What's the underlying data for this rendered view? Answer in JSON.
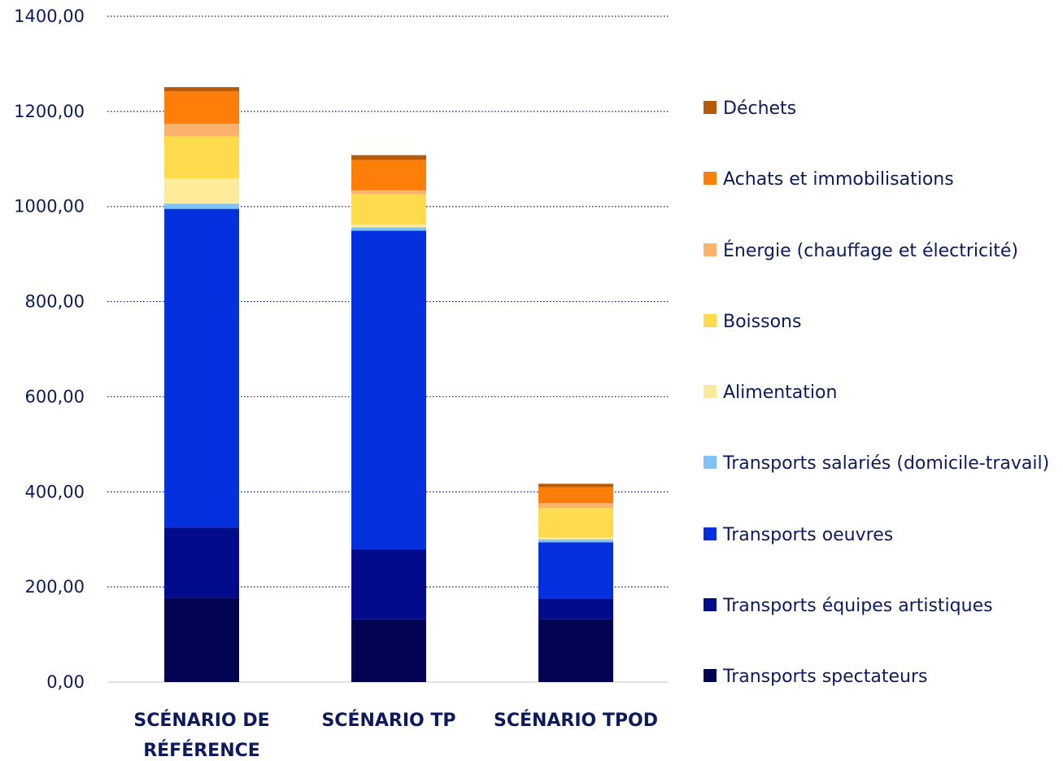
{
  "chart_data": {
    "type": "bar",
    "stacked": true,
    "categories": [
      [
        "SCÉNARIO DE",
        "RÉFÉRENCE"
      ],
      [
        "SCÉNARIO TP"
      ],
      [
        "SCÉNARIO TPOD"
      ]
    ],
    "ylim": [
      0,
      1400
    ],
    "yticks": [
      "0,00",
      "200,00",
      "400,00",
      "600,00",
      "800,00",
      "1000,00",
      "1200,00",
      "1400,00"
    ],
    "ytick_values": [
      0,
      200,
      400,
      600,
      800,
      1000,
      1200,
      1400
    ],
    "grid": "horizontal dotted",
    "legend_position": "right",
    "series": [
      {
        "name": "Transports spectateurs",
        "color": "#020453",
        "values": [
          177,
          132,
          132
        ]
      },
      {
        "name": "Transports équipes artistiques",
        "color": "#020c8b",
        "values": [
          148,
          147,
          44
        ]
      },
      {
        "name": "Transports oeuvres",
        "color": "#0530de",
        "values": [
          670,
          670,
          118
        ]
      },
      {
        "name": "Transports salariés (domicile-travail)",
        "color": "#7fc2f5",
        "values": [
          11,
          7,
          6
        ]
      },
      {
        "name": "Alimentation",
        "color": "#feeb9a",
        "values": [
          53,
          6,
          4
        ]
      },
      {
        "name": "Boissons",
        "color": "#fedb4c",
        "values": [
          88,
          64,
          62
        ]
      },
      {
        "name": "Énergie (chauffage et électricité)",
        "color": "#fbb26b",
        "values": [
          27,
          8,
          10
        ]
      },
      {
        "name": "Achats et immobilisations",
        "color": "#fd7f09",
        "values": [
          68,
          64,
          34
        ]
      },
      {
        "name": "Déchets",
        "color": "#b65b09",
        "values": [
          9,
          10,
          7
        ]
      }
    ]
  },
  "legend": {
    "items": [
      {
        "label": "Déchets",
        "color": "#b65b09"
      },
      {
        "label": "Achats et immobilisations",
        "color": "#fd7f09"
      },
      {
        "label": "Énergie (chauffage et électricité)",
        "color": "#fbb26b"
      },
      {
        "label": "Boissons",
        "color": "#fedb4c"
      },
      {
        "label": "Alimentation",
        "color": "#feeb9a"
      },
      {
        "label": "Transports salariés (domicile-travail)",
        "color": "#7fc2f5"
      },
      {
        "label": "Transports oeuvres",
        "color": "#0530de"
      },
      {
        "label": "Transports équipes artistiques",
        "color": "#020c8b"
      },
      {
        "label": "Transports spectateurs",
        "color": "#020453"
      }
    ]
  }
}
